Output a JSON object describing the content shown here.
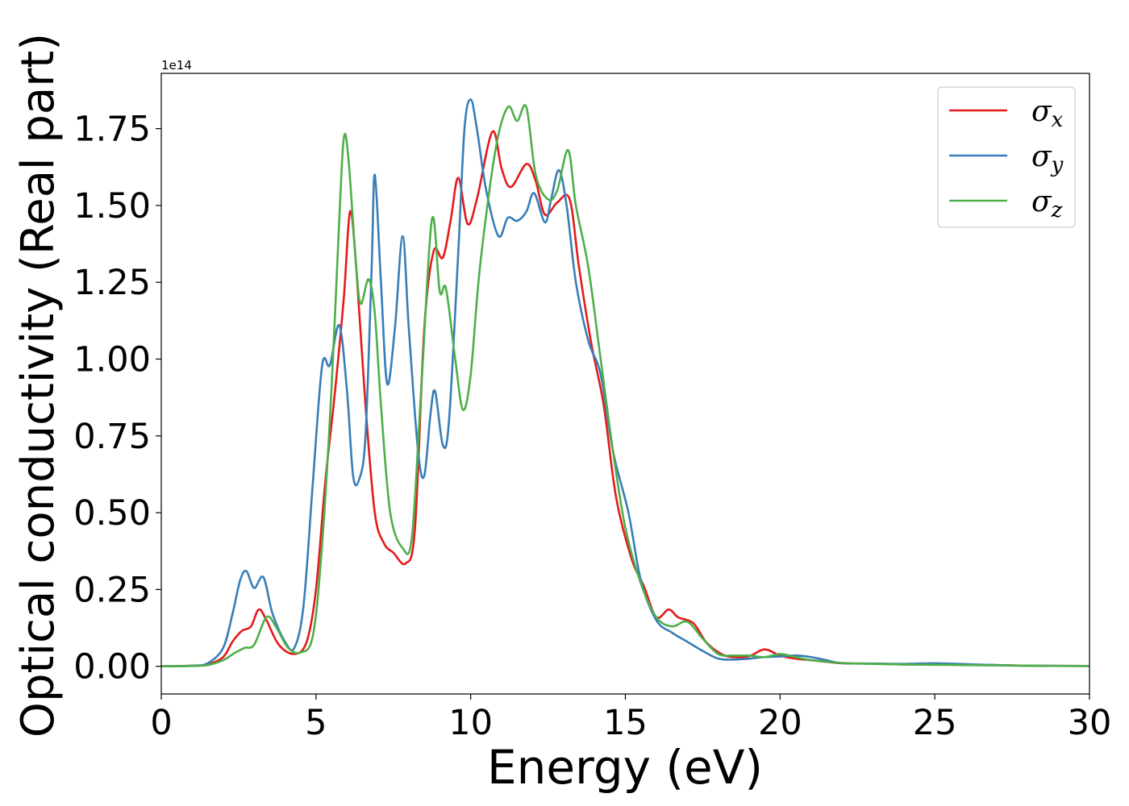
{
  "chart_data": {
    "type": "line",
    "xlabel": "Energy (eV)",
    "ylabel": "Optical conductivity (Real part)",
    "offset_text": "1e14",
    "xlim": [
      0,
      30
    ],
    "ylim": [
      -0.09,
      1.93
    ],
    "y_scale_note": "values in units of 1e14",
    "xticks": [
      0,
      5,
      10,
      15,
      20,
      25,
      30
    ],
    "xtick_labels": [
      "0",
      "5",
      "10",
      "15",
      "20",
      "25",
      "30"
    ],
    "yticks": [
      0.0,
      0.25,
      0.5,
      0.75,
      1.0,
      1.25,
      1.5,
      1.75
    ],
    "ytick_labels": [
      "0.00",
      "0.25",
      "0.50",
      "0.75",
      "1.00",
      "1.25",
      "1.50",
      "1.75"
    ],
    "grid": false,
    "legend_position": "top-right",
    "series": [
      {
        "name": "σ",
        "subscript": "x",
        "color": "#e41a1c",
        "points": [
          [
            0,
            0
          ],
          [
            1,
            0.002
          ],
          [
            1.5,
            0.006
          ],
          [
            2,
            0.03
          ],
          [
            2.3,
            0.08
          ],
          [
            2.6,
            0.115
          ],
          [
            2.9,
            0.13
          ],
          [
            3.15,
            0.185
          ],
          [
            3.4,
            0.15
          ],
          [
            3.8,
            0.07
          ],
          [
            4.3,
            0.04
          ],
          [
            4.7,
            0.08
          ],
          [
            5.0,
            0.25
          ],
          [
            5.3,
            0.6
          ],
          [
            5.6,
            0.88
          ],
          [
            5.9,
            1.2
          ],
          [
            6.1,
            1.48
          ],
          [
            6.3,
            1.3
          ],
          [
            6.6,
            0.85
          ],
          [
            6.9,
            0.5
          ],
          [
            7.2,
            0.4
          ],
          [
            7.5,
            0.37
          ],
          [
            7.9,
            0.335
          ],
          [
            8.2,
            0.45
          ],
          [
            8.5,
            1.1
          ],
          [
            8.8,
            1.35
          ],
          [
            9.1,
            1.33
          ],
          [
            9.35,
            1.45
          ],
          [
            9.6,
            1.59
          ],
          [
            9.9,
            1.44
          ],
          [
            10.2,
            1.52
          ],
          [
            10.7,
            1.74
          ],
          [
            11.0,
            1.62
          ],
          [
            11.3,
            1.56
          ],
          [
            11.8,
            1.635
          ],
          [
            12.1,
            1.58
          ],
          [
            12.4,
            1.47
          ],
          [
            12.8,
            1.51
          ],
          [
            13.2,
            1.52
          ],
          [
            13.5,
            1.3
          ],
          [
            13.9,
            1.05
          ],
          [
            14.3,
            0.85
          ],
          [
            14.7,
            0.55
          ],
          [
            15.2,
            0.35
          ],
          [
            15.6,
            0.26
          ],
          [
            16.0,
            0.16
          ],
          [
            16.4,
            0.185
          ],
          [
            16.7,
            0.16
          ],
          [
            17.2,
            0.14
          ],
          [
            17.6,
            0.08
          ],
          [
            18.1,
            0.04
          ],
          [
            18.5,
            0.03
          ],
          [
            19.0,
            0.033
          ],
          [
            19.5,
            0.055
          ],
          [
            20.0,
            0.035
          ],
          [
            20.5,
            0.025
          ],
          [
            21.0,
            0.02
          ],
          [
            22.0,
            0.01
          ],
          [
            23.0,
            0.009
          ],
          [
            24.0,
            0.006
          ],
          [
            25.0,
            0.006
          ],
          [
            26.0,
            0.005
          ],
          [
            27.0,
            0.004
          ],
          [
            28.0,
            0.002
          ],
          [
            30.0,
            0.001
          ]
        ]
      },
      {
        "name": "σ",
        "subscript": "y",
        "color": "#377eb8",
        "points": [
          [
            0,
            0
          ],
          [
            1,
            0.002
          ],
          [
            1.5,
            0.01
          ],
          [
            2,
            0.06
          ],
          [
            2.3,
            0.17
          ],
          [
            2.55,
            0.28
          ],
          [
            2.75,
            0.31
          ],
          [
            3.0,
            0.255
          ],
          [
            3.3,
            0.29
          ],
          [
            3.6,
            0.17
          ],
          [
            4.0,
            0.08
          ],
          [
            4.3,
            0.06
          ],
          [
            4.6,
            0.2
          ],
          [
            4.9,
            0.6
          ],
          [
            5.2,
            0.98
          ],
          [
            5.45,
            0.98
          ],
          [
            5.75,
            1.11
          ],
          [
            6.0,
            0.9
          ],
          [
            6.2,
            0.62
          ],
          [
            6.4,
            0.61
          ],
          [
            6.6,
            0.75
          ],
          [
            6.8,
            1.3
          ],
          [
            6.9,
            1.6
          ],
          [
            7.1,
            1.25
          ],
          [
            7.3,
            0.92
          ],
          [
            7.55,
            1.1
          ],
          [
            7.8,
            1.4
          ],
          [
            8.0,
            1.1
          ],
          [
            8.3,
            0.7
          ],
          [
            8.5,
            0.62
          ],
          [
            8.7,
            0.82
          ],
          [
            8.85,
            0.895
          ],
          [
            9.1,
            0.72
          ],
          [
            9.3,
            0.8
          ],
          [
            9.6,
            1.35
          ],
          [
            9.8,
            1.75
          ],
          [
            10.0,
            1.845
          ],
          [
            10.2,
            1.75
          ],
          [
            10.5,
            1.55
          ],
          [
            10.9,
            1.4
          ],
          [
            11.2,
            1.46
          ],
          [
            11.5,
            1.45
          ],
          [
            11.8,
            1.48
          ],
          [
            12.05,
            1.54
          ],
          [
            12.4,
            1.445
          ],
          [
            12.6,
            1.52
          ],
          [
            12.85,
            1.615
          ],
          [
            13.1,
            1.5
          ],
          [
            13.4,
            1.25
          ],
          [
            13.8,
            1.06
          ],
          [
            14.2,
            0.95
          ],
          [
            14.6,
            0.7
          ],
          [
            15.1,
            0.5
          ],
          [
            15.5,
            0.28
          ],
          [
            16.0,
            0.15
          ],
          [
            16.5,
            0.11
          ],
          [
            17.0,
            0.08
          ],
          [
            17.5,
            0.05
          ],
          [
            18.0,
            0.025
          ],
          [
            18.5,
            0.022
          ],
          [
            19.0,
            0.025
          ],
          [
            19.5,
            0.03
          ],
          [
            20.0,
            0.032
          ],
          [
            20.5,
            0.035
          ],
          [
            21.0,
            0.03
          ],
          [
            21.5,
            0.02
          ],
          [
            22.0,
            0.01
          ],
          [
            23.0,
            0.009
          ],
          [
            24.0,
            0.008
          ],
          [
            25.0,
            0.01
          ],
          [
            26.0,
            0.007
          ],
          [
            27.0,
            0.004
          ],
          [
            28.0,
            0.002
          ],
          [
            30.0,
            0.001
          ]
        ]
      },
      {
        "name": "σ",
        "subscript": "z",
        "color": "#4daf4a",
        "points": [
          [
            0,
            0
          ],
          [
            1,
            0.001
          ],
          [
            1.5,
            0.004
          ],
          [
            2,
            0.02
          ],
          [
            2.4,
            0.045
          ],
          [
            2.7,
            0.06
          ],
          [
            3.0,
            0.07
          ],
          [
            3.4,
            0.16
          ],
          [
            3.7,
            0.13
          ],
          [
            4.1,
            0.06
          ],
          [
            4.5,
            0.045
          ],
          [
            4.9,
            0.1
          ],
          [
            5.2,
            0.4
          ],
          [
            5.5,
            0.9
          ],
          [
            5.75,
            1.45
          ],
          [
            5.9,
            1.72
          ],
          [
            6.05,
            1.65
          ],
          [
            6.3,
            1.3
          ],
          [
            6.45,
            1.18
          ],
          [
            6.7,
            1.26
          ],
          [
            6.9,
            1.15
          ],
          [
            7.1,
            0.85
          ],
          [
            7.4,
            0.5
          ],
          [
            7.8,
            0.385
          ],
          [
            8.1,
            0.42
          ],
          [
            8.4,
            0.9
          ],
          [
            8.75,
            1.455
          ],
          [
            9.0,
            1.22
          ],
          [
            9.2,
            1.23
          ],
          [
            9.5,
            1.0
          ],
          [
            9.75,
            0.835
          ],
          [
            10.0,
            0.95
          ],
          [
            10.3,
            1.3
          ],
          [
            10.8,
            1.68
          ],
          [
            11.2,
            1.82
          ],
          [
            11.5,
            1.775
          ],
          [
            11.8,
            1.82
          ],
          [
            12.1,
            1.6
          ],
          [
            12.5,
            1.52
          ],
          [
            12.8,
            1.55
          ],
          [
            13.15,
            1.68
          ],
          [
            13.4,
            1.5
          ],
          [
            13.8,
            1.3
          ],
          [
            14.2,
            1.0
          ],
          [
            14.6,
            0.7
          ],
          [
            15.0,
            0.45
          ],
          [
            15.5,
            0.27
          ],
          [
            16.0,
            0.16
          ],
          [
            16.5,
            0.13
          ],
          [
            17.0,
            0.145
          ],
          [
            17.5,
            0.09
          ],
          [
            18.0,
            0.04
          ],
          [
            18.5,
            0.035
          ],
          [
            19.0,
            0.035
          ],
          [
            19.5,
            0.03
          ],
          [
            20.0,
            0.04
          ],
          [
            20.5,
            0.03
          ],
          [
            21.0,
            0.02
          ],
          [
            22.0,
            0.011
          ],
          [
            23.0,
            0.008
          ],
          [
            24.0,
            0.006
          ],
          [
            25.0,
            0.005
          ],
          [
            26.0,
            0.004
          ],
          [
            27.0,
            0.003
          ],
          [
            28.0,
            0.002
          ],
          [
            30.0,
            0.001
          ]
        ]
      }
    ]
  }
}
